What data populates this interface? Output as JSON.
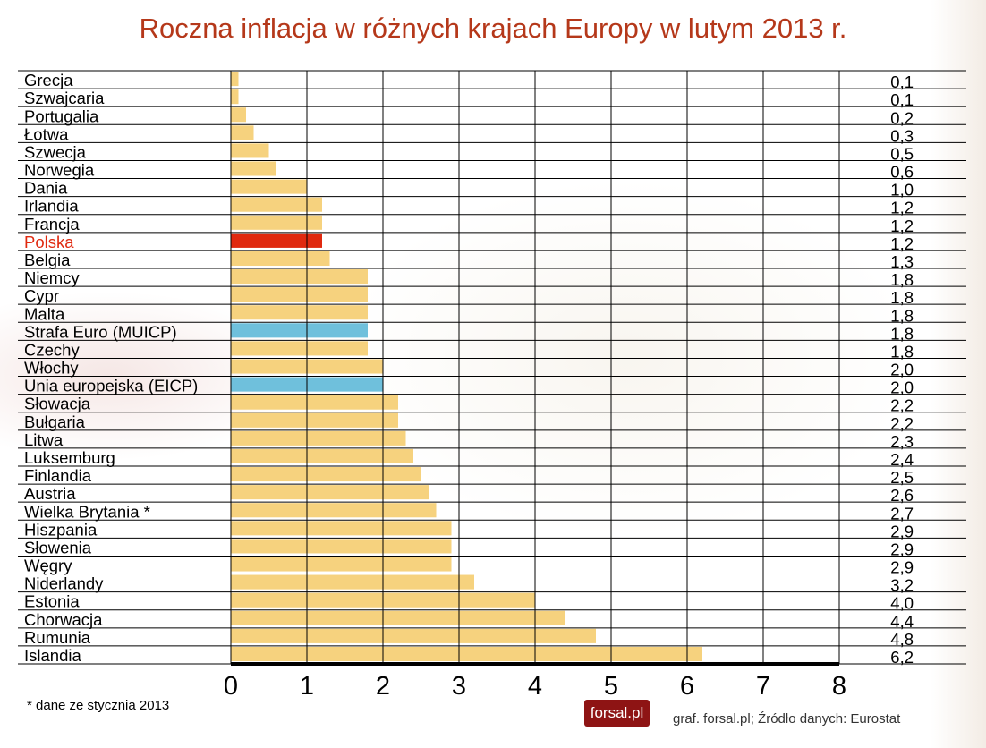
{
  "chart_data": {
    "type": "bar",
    "orientation": "horizontal",
    "title": "Roczna inflacja w różnych krajach Europy w lutym 2013 r.",
    "categories": [
      "Grecja",
      "Szwajcaria",
      "Portugalia",
      "Łotwa",
      "Szwecja",
      "Norwegia",
      "Dania",
      "Irlandia",
      "Francja",
      "Polska",
      "Belgia",
      "Niemcy",
      "Cypr",
      "Malta",
      "Strafa Euro  (MUICP)",
      "Czechy",
      "Włochy",
      "Unia europejska (EICP)",
      "Słowacja",
      "Bułgaria",
      "Litwa",
      "Luksemburg",
      "Finlandia",
      "Austria",
      "Wielka Brytania *",
      "Hiszpania",
      "Słowenia",
      "Węgry",
      "Niderlandy",
      "Estonia",
      "Chorwacja",
      "Rumunia",
      "Islandia"
    ],
    "values": [
      0.1,
      0.1,
      0.2,
      0.3,
      0.5,
      0.6,
      1.0,
      1.2,
      1.2,
      1.2,
      1.3,
      1.8,
      1.8,
      1.8,
      1.8,
      1.8,
      2.0,
      2.0,
      2.2,
      2.2,
      2.3,
      2.4,
      2.5,
      2.6,
      2.7,
      2.9,
      2.9,
      2.9,
      3.2,
      4.0,
      4.4,
      4.8,
      6.2
    ],
    "value_labels": [
      "0,1",
      "0,1",
      "0,2",
      "0,3",
      "0,5",
      "0,6",
      "1,0",
      "1,2",
      "1,2",
      "1,2",
      "1,3",
      "1,8",
      "1,8",
      "1,8",
      "1,8",
      "1,8",
      "2,0",
      "2,0",
      "2,2",
      "2,2",
      "2,3",
      "2,4",
      "2,5",
      "2,6",
      "2,7",
      "2,9",
      "2,9",
      "2,9",
      "3,2",
      "4,0",
      "4,4",
      "4,8",
      "6,2"
    ],
    "highlight": {
      "Polska": "#e0290f",
      "Strafa Euro  (MUICP)": "#6fc0dc",
      "Unia europejska (EICP)": "#6fc0dc"
    },
    "bar_color": "#f6d27e",
    "label_highlight_color": {
      "Polska": "#e0290f"
    },
    "xlim": [
      0,
      8
    ],
    "xticks": [
      "0",
      "1",
      "2",
      "3",
      "4",
      "5",
      "6",
      "7",
      "8"
    ],
    "grid": true,
    "xlabel": "",
    "ylabel": ""
  },
  "footer": {
    "note": "* dane ze stycznia 2013",
    "logo": "forsal.pl",
    "source": "graf. forsal.pl; Źródło danych: Eurostat"
  },
  "title_color": "#b5381a"
}
